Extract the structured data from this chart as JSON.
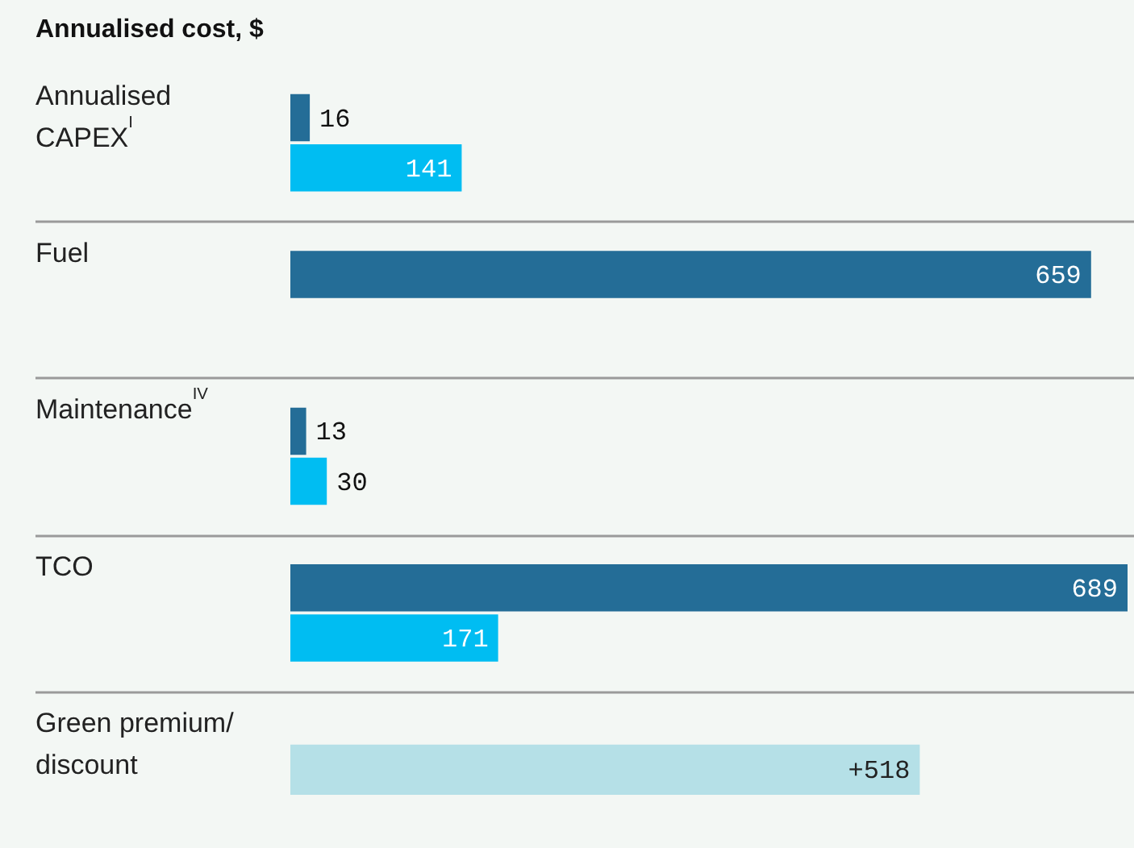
{
  "chart_data": {
    "type": "bar",
    "orientation": "horizontal",
    "title": "Annualised cost, $",
    "categories": [
      "Annualised\nCAPEX$^{I}$",
      "Fuel",
      "Maintenance$^{IV}$",
      "TCO",
      "Green premium/\ndiscount"
    ],
    "series": [
      {
        "color": "#246d97",
        "values": [
          16,
          659,
          13,
          689,
          null
        ]
      },
      {
        "color": "#00bdf2",
        "values": [
          141,
          null,
          30,
          171,
          null
        ]
      },
      {
        "color": "#b5e0e7",
        "values": [
          null,
          null,
          null,
          null,
          518
        ],
        "value_labels": [
          null,
          null,
          null,
          null,
          "+518"
        ]
      }
    ],
    "data_labels": true,
    "grid": "y",
    "legend": false,
    "tick_labels": "y"
  }
}
